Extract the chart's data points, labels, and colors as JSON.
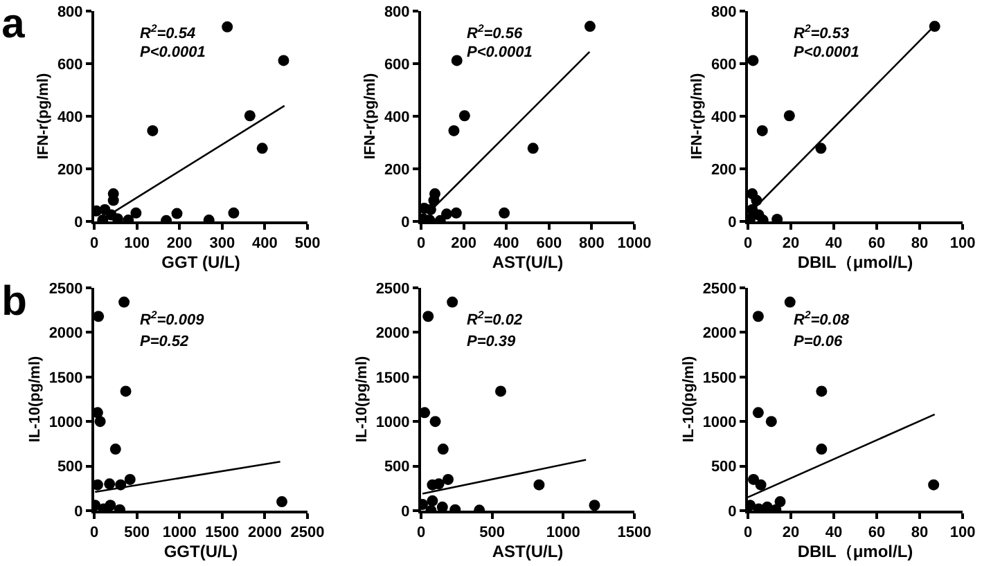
{
  "chart_data": [
    {
      "type": "scatter",
      "title": "a",
      "xlabel": "GGT (U/L)",
      "ylabel": "IFN-r(pg/ml)",
      "xlim": [
        0,
        500
      ],
      "xticks": [
        0,
        100,
        200,
        300,
        400,
        500
      ],
      "ylim": [
        0,
        800
      ],
      "yticks": [
        0,
        200,
        400,
        600,
        800
      ],
      "annotations": [
        "R$^{2}$=0.54",
        "P<0.0001"
      ],
      "series": [
        {
          "type": "scatter",
          "marker": "circle",
          "color": "#000000",
          "x": [
            312,
            444,
            137,
            365,
            394,
            98,
            169,
            194,
            269,
            327,
            45,
            45,
            80,
            5,
            25,
            20,
            40,
            55
          ],
          "values": [
            740,
            612,
            345,
            402,
            278,
            32,
            3,
            30,
            5,
            32,
            105,
            80,
            5,
            40,
            45,
            5,
            25,
            10
          ]
        },
        {
          "type": "line",
          "marker": "none",
          "color": "#000000",
          "x": [
            40,
            446
          ],
          "values": [
            30,
            440
          ]
        }
      ]
    },
    {
      "type": "scatter",
      "xlabel": "AST(U/L)",
      "ylabel": "IFN-r(pg/ml)",
      "xlim": [
        0,
        1000
      ],
      "xticks": [
        0,
        200,
        400,
        600,
        800,
        1000
      ],
      "ylim": [
        0,
        800
      ],
      "yticks": [
        0,
        200,
        400,
        600,
        800
      ],
      "annotations": [
        "R$^{2}$=0.56",
        "P<0.0001"
      ],
      "series": [
        {
          "type": "scatter",
          "marker": "circle",
          "color": "#000000",
          "x": [
            792,
            168,
            204,
            154,
            525,
            390,
            165,
            120,
            90,
            65,
            60,
            10,
            15,
            45,
            40
          ],
          "values": [
            742,
            612,
            402,
            345,
            278,
            32,
            32,
            28,
            3,
            105,
            80,
            10,
            50,
            45,
            5
          ]
        },
        {
          "type": "line",
          "marker": "none",
          "color": "#000000",
          "x": [
            50,
            790
          ],
          "values": [
            45,
            645
          ]
        }
      ]
    },
    {
      "type": "scatter",
      "xlabel": "DBIL（μmol/L)",
      "ylabel": "IFN-r(pg/ml)",
      "xlim": [
        0,
        100
      ],
      "xticks": [
        0,
        20,
        40,
        60,
        80,
        100
      ],
      "ylim": [
        0,
        800
      ],
      "yticks": [
        0,
        200,
        400,
        600,
        800
      ],
      "annotations": [
        "R$^{2}$=0.53",
        "P<0.0001"
      ],
      "series": [
        {
          "type": "scatter",
          "marker": "circle",
          "color": "#000000",
          "x": [
            87,
            2.4,
            19.3,
            6.7,
            34,
            13.6,
            2,
            4,
            1,
            2,
            5,
            7
          ],
          "values": [
            742,
            612,
            402,
            345,
            278,
            8,
            105,
            80,
            10,
            45,
            25,
            5
          ]
        },
        {
          "type": "line",
          "marker": "none",
          "color": "#000000",
          "x": [
            3,
            87
          ],
          "values": [
            50,
            745
          ]
        }
      ]
    },
    {
      "type": "scatter",
      "title": "b",
      "xlabel": "GGT(U/L)",
      "ylabel": "IL-10(pg/ml)",
      "xlim": [
        0,
        2500
      ],
      "xticks": [
        0,
        500,
        1000,
        1500,
        2000,
        2500
      ],
      "ylim": [
        0,
        2500
      ],
      "yticks": [
        0,
        500,
        1000,
        1500,
        2000,
        2500
      ],
      "annotations": [
        "R$^{2}$=0.009",
        "P=0.52"
      ],
      "series": [
        {
          "type": "scatter",
          "marker": "circle",
          "color": "#000000",
          "x": [
            2200,
            50,
            350,
            370,
            40,
            70,
            250,
            420,
            40,
            180,
            310,
            10,
            110,
            190,
            300
          ],
          "values": [
            100,
            2180,
            2340,
            1340,
            1100,
            1000,
            690,
            350,
            290,
            300,
            290,
            60,
            20,
            60,
            10
          ]
        },
        {
          "type": "line",
          "marker": "none",
          "color": "#000000",
          "x": [
            10,
            2180
          ],
          "values": [
            210,
            550
          ]
        }
      ]
    },
    {
      "type": "scatter",
      "xlabel": "AST(U/L)",
      "ylabel": "IL-10(pg/ml)",
      "xlim": [
        0,
        1500
      ],
      "xticks": [
        0,
        500,
        1000,
        1500
      ],
      "ylim": [
        0,
        2500
      ],
      "yticks": [
        0,
        500,
        1000,
        1500,
        2000,
        2500
      ],
      "annotations": [
        "R$^{2}$=0.02",
        "P=0.39"
      ],
      "series": [
        {
          "type": "scatter",
          "marker": "circle",
          "color": "#000000",
          "x": [
            220,
            50,
            560,
            25,
            100,
            155,
            190,
            830,
            1220,
            410,
            240,
            80,
            125,
            10,
            80,
            70,
            150
          ],
          "values": [
            2340,
            2180,
            1340,
            1100,
            1000,
            690,
            350,
            290,
            60,
            5,
            10,
            290,
            300,
            70,
            110,
            0,
            40
          ]
        },
        {
          "type": "line",
          "marker": "none",
          "color": "#000000",
          "x": [
            10,
            1160
          ],
          "values": [
            190,
            570
          ]
        }
      ]
    },
    {
      "type": "scatter",
      "xlabel": "DBIL（μmol/L)",
      "ylabel": "IL-10(pg/ml)",
      "xlim": [
        0,
        100
      ],
      "xticks": [
        0,
        20,
        40,
        60,
        80,
        100
      ],
      "ylim": [
        0,
        2500
      ],
      "yticks": [
        0,
        500,
        1000,
        1500,
        2000,
        2500
      ],
      "annotations": [
        "R$^{2}$=0.08",
        "P=0.06"
      ],
      "series": [
        {
          "type": "scatter",
          "marker": "circle",
          "color": "#000000",
          "x": [
            19.6,
            4.8,
            34.3,
            4.8,
            10.9,
            34.3,
            86.5,
            2.6,
            6,
            1,
            5,
            9,
            13,
            15
          ],
          "values": [
            2340,
            2180,
            1340,
            1100,
            1000,
            690,
            290,
            350,
            290,
            60,
            20,
            40,
            10,
            100
          ]
        },
        {
          "type": "line",
          "marker": "none",
          "color": "#000000",
          "x": [
            0,
            87
          ],
          "values": [
            150,
            1080
          ]
        }
      ]
    }
  ]
}
